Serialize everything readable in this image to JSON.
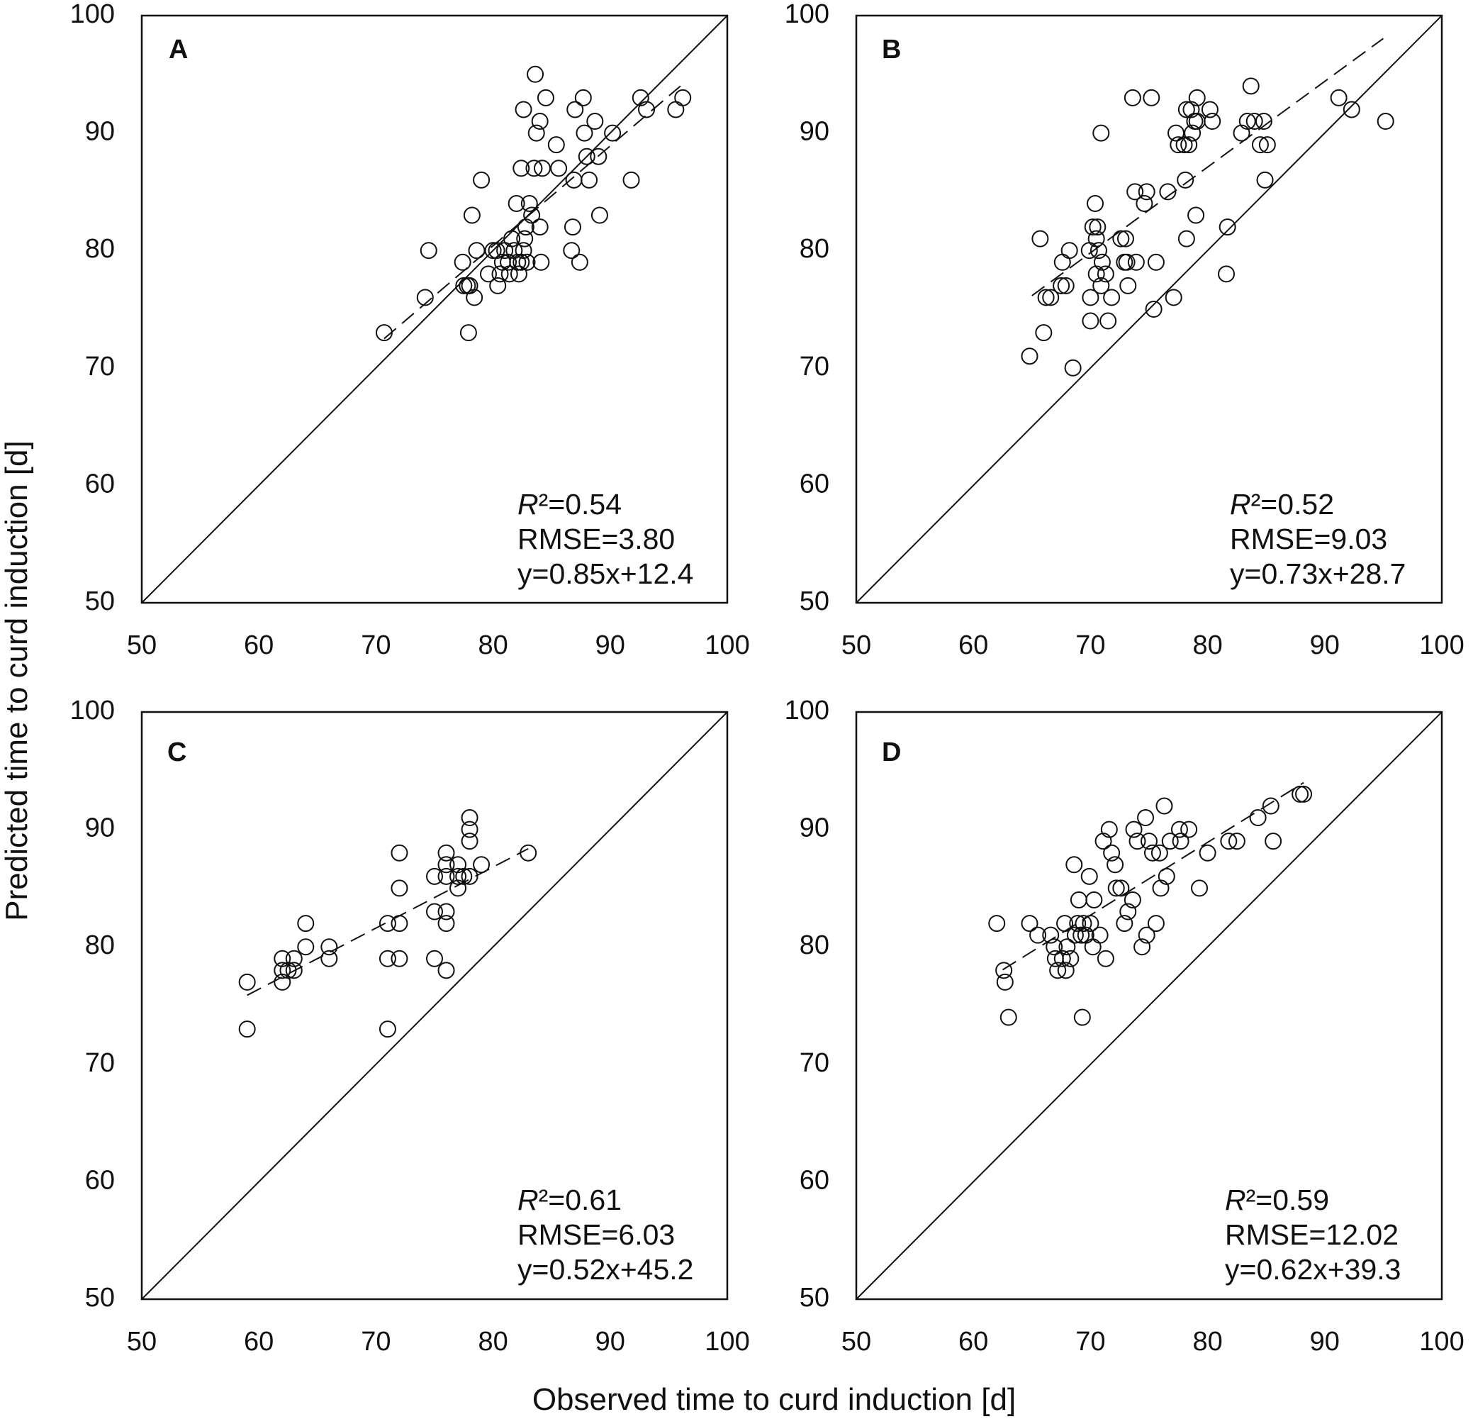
{
  "figure": {
    "xlabel": "Observed time to curd induction [d]",
    "ylabel": "Predicted time to curd induction [d]"
  },
  "chart_data": [
    {
      "type": "scatter",
      "panel": "A",
      "xlim": [
        50,
        100
      ],
      "ylim": [
        50,
        100
      ],
      "xticks": [
        "50",
        "60",
        "70",
        "80",
        "90",
        "100"
      ],
      "yticks": [
        "50",
        "60",
        "70",
        "80",
        "90",
        "100"
      ],
      "r2_symbol": "R",
      "r2_text": "²=0.54",
      "rmse_text": "RMSE=3.80",
      "equation_text": "y=0.85x+12.4",
      "fit": {
        "slope": 0.85,
        "intercept": 12.4,
        "x_range": [
          70.7,
          96.0
        ]
      },
      "identity_line": true,
      "points": [
        [
          70.7,
          73
        ],
        [
          74.2,
          76
        ],
        [
          74.5,
          80
        ],
        [
          77.4,
          79
        ],
        [
          77.5,
          77
        ],
        [
          77.8,
          77
        ],
        [
          77.9,
          73
        ],
        [
          78.0,
          77
        ],
        [
          78.2,
          83
        ],
        [
          78.4,
          76
        ],
        [
          78.6,
          80
        ],
        [
          79.0,
          86
        ],
        [
          79.6,
          78
        ],
        [
          80.0,
          80
        ],
        [
          80.3,
          80
        ],
        [
          80.4,
          77
        ],
        [
          80.6,
          78
        ],
        [
          80.8,
          79
        ],
        [
          81.0,
          80
        ],
        [
          81.3,
          79
        ],
        [
          81.4,
          78
        ],
        [
          81.6,
          81
        ],
        [
          81.8,
          80
        ],
        [
          82.0,
          84
        ],
        [
          82.1,
          79
        ],
        [
          82.2,
          78
        ],
        [
          82.4,
          87
        ],
        [
          82.4,
          79
        ],
        [
          82.6,
          92
        ],
        [
          82.6,
          80
        ],
        [
          82.7,
          81
        ],
        [
          82.8,
          82
        ],
        [
          82.9,
          79
        ],
        [
          83.1,
          84
        ],
        [
          83.3,
          83
        ],
        [
          83.5,
          87
        ],
        [
          83.6,
          95
        ],
        [
          83.7,
          90
        ],
        [
          84.0,
          91
        ],
        [
          84.0,
          82
        ],
        [
          84.1,
          79
        ],
        [
          84.2,
          87
        ],
        [
          84.5,
          93
        ],
        [
          85.4,
          89
        ],
        [
          85.6,
          87
        ],
        [
          86.7,
          80
        ],
        [
          86.8,
          82
        ],
        [
          86.9,
          86
        ],
        [
          87.0,
          92
        ],
        [
          87.4,
          79
        ],
        [
          87.7,
          93
        ],
        [
          87.8,
          90
        ],
        [
          88.0,
          88
        ],
        [
          88.2,
          86
        ],
        [
          88.7,
          91
        ],
        [
          89.0,
          88
        ],
        [
          89.1,
          83
        ],
        [
          90.2,
          90
        ],
        [
          91.8,
          86
        ],
        [
          92.6,
          93
        ],
        [
          93.1,
          92
        ],
        [
          95.6,
          92
        ],
        [
          96.2,
          93
        ]
      ]
    },
    {
      "type": "scatter",
      "panel": "B",
      "xlim": [
        50,
        100
      ],
      "ylim": [
        50,
        100
      ],
      "xticks": [
        "50",
        "60",
        "70",
        "80",
        "90",
        "100"
      ],
      "yticks": [
        "50",
        "60",
        "70",
        "80",
        "90",
        "100"
      ],
      "r2_symbol": "R",
      "r2_text": "²=0.52",
      "rmse_text": "RMSE=9.03",
      "equation_text": "y=0.73x+28.7",
      "fit": {
        "slope": 0.73,
        "intercept": 28.7,
        "x_range": [
          65.0,
          95.0
        ]
      },
      "identity_line": true,
      "points": [
        [
          64.8,
          71
        ],
        [
          65.7,
          81
        ],
        [
          66.0,
          73
        ],
        [
          66.2,
          76
        ],
        [
          66.6,
          76
        ],
        [
          67.5,
          77
        ],
        [
          67.6,
          79
        ],
        [
          67.9,
          77
        ],
        [
          68.2,
          80
        ],
        [
          68.5,
          70
        ],
        [
          69.9,
          80
        ],
        [
          70.0,
          74
        ],
        [
          70.0,
          76
        ],
        [
          70.2,
          82
        ],
        [
          70.4,
          84
        ],
        [
          70.5,
          81
        ],
        [
          70.5,
          78
        ],
        [
          70.6,
          82
        ],
        [
          70.7,
          80
        ],
        [
          70.9,
          77
        ],
        [
          70.9,
          90
        ],
        [
          71.0,
          79
        ],
        [
          71.3,
          78
        ],
        [
          71.5,
          74
        ],
        [
          71.8,
          76
        ],
        [
          72.6,
          81
        ],
        [
          72.9,
          79
        ],
        [
          73.0,
          81
        ],
        [
          73.1,
          79
        ],
        [
          73.2,
          77
        ],
        [
          73.6,
          93
        ],
        [
          73.8,
          85
        ],
        [
          73.9,
          79
        ],
        [
          74.6,
          84
        ],
        [
          74.8,
          85
        ],
        [
          75.2,
          93
        ],
        [
          75.4,
          75
        ],
        [
          75.6,
          79
        ],
        [
          76.6,
          85
        ],
        [
          77.1,
          76
        ],
        [
          77.3,
          90
        ],
        [
          77.5,
          89
        ],
        [
          78.0,
          89
        ],
        [
          78.1,
          86
        ],
        [
          78.2,
          92
        ],
        [
          78.2,
          81
        ],
        [
          78.4,
          89
        ],
        [
          78.6,
          92
        ],
        [
          78.7,
          90
        ],
        [
          78.9,
          91
        ],
        [
          79.0,
          83
        ],
        [
          79.1,
          91
        ],
        [
          79.1,
          93
        ],
        [
          80.2,
          92
        ],
        [
          80.4,
          91
        ],
        [
          81.6,
          78
        ],
        [
          81.7,
          82
        ],
        [
          82.9,
          90
        ],
        [
          83.4,
          91
        ],
        [
          83.7,
          94
        ],
        [
          84.0,
          91
        ],
        [
          84.5,
          89
        ],
        [
          84.8,
          91
        ],
        [
          84.9,
          86
        ],
        [
          85.1,
          89
        ],
        [
          91.2,
          93
        ],
        [
          92.3,
          92
        ],
        [
          95.2,
          91
        ]
      ]
    },
    {
      "type": "scatter",
      "panel": "C",
      "xlim": [
        50,
        100
      ],
      "ylim": [
        50,
        100
      ],
      "xticks": [
        "50",
        "60",
        "70",
        "80",
        "90",
        "100"
      ],
      "yticks": [
        "50",
        "60",
        "70",
        "80",
        "90",
        "100"
      ],
      "r2_symbol": "R",
      "r2_text": "²=0.61",
      "rmse_text": "RMSE=6.03",
      "equation_text": "y=0.52x+45.2",
      "fit": {
        "slope": 0.52,
        "intercept": 45.2,
        "x_range": [
          59.0,
          83.0
        ]
      },
      "identity_line": true,
      "points": [
        [
          59.0,
          77
        ],
        [
          59.0,
          73
        ],
        [
          62.0,
          79
        ],
        [
          62.0,
          78
        ],
        [
          62.0,
          77
        ],
        [
          62.5,
          78
        ],
        [
          63.0,
          79
        ],
        [
          63.0,
          78
        ],
        [
          64.0,
          82
        ],
        [
          64.0,
          80
        ],
        [
          66.0,
          80
        ],
        [
          66.0,
          79
        ],
        [
          71.0,
          82
        ],
        [
          71.0,
          79
        ],
        [
          71.0,
          73
        ],
        [
          72.0,
          88
        ],
        [
          72.0,
          85
        ],
        [
          72.0,
          82
        ],
        [
          72.0,
          79
        ],
        [
          75.0,
          86
        ],
        [
          75.0,
          83
        ],
        [
          75.0,
          79
        ],
        [
          76.0,
          88
        ],
        [
          76.0,
          87
        ],
        [
          76.0,
          86
        ],
        [
          76.0,
          83
        ],
        [
          76.0,
          82
        ],
        [
          76.0,
          78
        ],
        [
          77.0,
          87
        ],
        [
          77.0,
          86
        ],
        [
          77.0,
          85
        ],
        [
          77.5,
          86
        ],
        [
          78.0,
          91
        ],
        [
          78.0,
          90
        ],
        [
          78.0,
          89
        ],
        [
          78.0,
          86
        ],
        [
          79.0,
          87
        ],
        [
          83.0,
          88
        ]
      ]
    },
    {
      "type": "scatter",
      "panel": "D",
      "xlim": [
        50,
        100
      ],
      "ylim": [
        50,
        100
      ],
      "xticks": [
        "50",
        "60",
        "70",
        "80",
        "90",
        "100"
      ],
      "yticks": [
        "50",
        "60",
        "70",
        "80",
        "90",
        "100"
      ],
      "r2_symbol": "R",
      "r2_text": "²=0.59",
      "rmse_text": "RMSE=12.02",
      "equation_text": "y=0.62x+39.3",
      "fit": {
        "slope": 0.62,
        "intercept": 39.3,
        "x_range": [
          62.5,
          88.2
        ]
      },
      "identity_line": true,
      "points": [
        [
          62.0,
          82
        ],
        [
          62.6,
          78
        ],
        [
          62.7,
          77
        ],
        [
          63.0,
          74
        ],
        [
          64.8,
          82
        ],
        [
          65.5,
          81
        ],
        [
          66.6,
          81
        ],
        [
          66.9,
          80
        ],
        [
          67.0,
          79
        ],
        [
          67.2,
          78
        ],
        [
          67.6,
          79
        ],
        [
          67.8,
          82
        ],
        [
          67.9,
          78
        ],
        [
          68.0,
          80
        ],
        [
          68.3,
          79
        ],
        [
          68.6,
          87
        ],
        [
          68.7,
          81
        ],
        [
          68.9,
          82
        ],
        [
          69.0,
          84
        ],
        [
          69.2,
          81
        ],
        [
          69.3,
          74
        ],
        [
          69.4,
          82
        ],
        [
          69.6,
          81
        ],
        [
          69.9,
          86
        ],
        [
          70.0,
          82
        ],
        [
          70.2,
          80
        ],
        [
          70.3,
          84
        ],
        [
          70.8,
          81
        ],
        [
          71.1,
          89
        ],
        [
          71.3,
          79
        ],
        [
          71.6,
          90
        ],
        [
          71.8,
          88
        ],
        [
          72.1,
          87
        ],
        [
          72.2,
          85
        ],
        [
          72.6,
          85
        ],
        [
          72.9,
          82
        ],
        [
          73.2,
          83
        ],
        [
          73.6,
          84
        ],
        [
          73.7,
          90
        ],
        [
          74.0,
          89
        ],
        [
          74.4,
          80
        ],
        [
          74.7,
          91
        ],
        [
          74.8,
          81
        ],
        [
          75.0,
          89
        ],
        [
          75.3,
          88
        ],
        [
          75.6,
          82
        ],
        [
          75.9,
          88
        ],
        [
          76.0,
          85
        ],
        [
          76.3,
          92
        ],
        [
          76.5,
          86
        ],
        [
          76.8,
          89
        ],
        [
          77.6,
          90
        ],
        [
          77.7,
          89
        ],
        [
          78.4,
          90
        ],
        [
          79.3,
          85
        ],
        [
          80.0,
          88
        ],
        [
          81.8,
          89
        ],
        [
          82.5,
          89
        ],
        [
          84.3,
          91
        ],
        [
          85.4,
          92
        ],
        [
          85.6,
          89
        ],
        [
          87.9,
          93
        ],
        [
          88.2,
          93
        ]
      ]
    }
  ]
}
